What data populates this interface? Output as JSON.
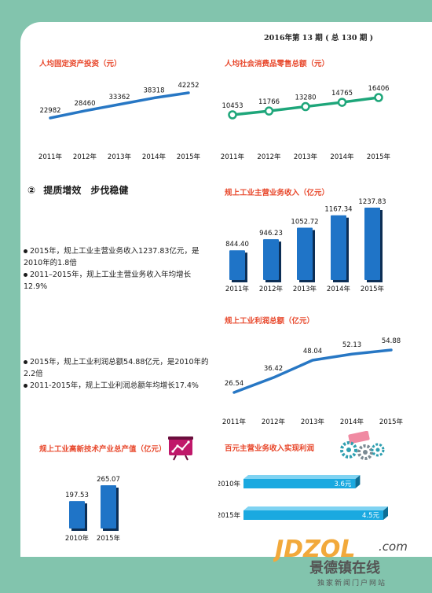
{
  "issue": "2016年第 13 期 ( 总 130 期 )",
  "section": {
    "number": "②",
    "title": "提质增效　步伐稳健"
  },
  "bullets_revenue": [
    "2015年，规上工业主营业务收入1237.83亿元，是2010年的1.8倍",
    "2011–2015年，规上工业主营业务收入年均增长12.9%"
  ],
  "bullets_profit": [
    "2015年，规上工业利润总额54.88亿元，是2010年的2.2倍",
    "2011-2015年，规上工业利润总额年均增长17.4%"
  ],
  "chart_data": [
    {
      "id": "fixed_investment",
      "type": "line",
      "title": "人均固定资产投资（元）",
      "categories": [
        "2011年",
        "2012年",
        "2013年",
        "2014年",
        "2015年"
      ],
      "labels": [
        "22982",
        "28460",
        "33362",
        "38318",
        "42252"
      ],
      "values": [
        22982,
        28460,
        33362,
        38318,
        42252
      ],
      "color": "#2777c4"
    },
    {
      "id": "retail_sales",
      "type": "line",
      "title": "人均社会消费品零售总额（元）",
      "categories": [
        "2011年",
        "2012年",
        "2013年",
        "2014年",
        "2015年"
      ],
      "labels": [
        "10453",
        "11766",
        "13280",
        "14765",
        "16406"
      ],
      "values": [
        10453,
        11766,
        13280,
        14765,
        16406
      ],
      "color": "#1ea67a",
      "markers": true
    },
    {
      "id": "industrial_revenue",
      "type": "bar",
      "title": "规上工业主营业务收入（亿元）",
      "categories": [
        "2011年",
        "2012年",
        "2013年",
        "2014年",
        "2015年"
      ],
      "labels": [
        "844.40",
        "946.23",
        "1052.72",
        "1167.34",
        "1237.83"
      ],
      "values": [
        844.4,
        946.23,
        1052.72,
        1167.34,
        1237.83
      ],
      "color": "#1f74c7"
    },
    {
      "id": "industrial_profit",
      "type": "line",
      "title": "规上工业利润总额（亿元）",
      "categories": [
        "2011年",
        "2012年",
        "2013年",
        "2014年",
        "2015年"
      ],
      "labels": [
        "26.54",
        "36.42",
        "48.04",
        "52.13",
        "54.88"
      ],
      "values": [
        26.54,
        36.42,
        48.04,
        52.13,
        54.88
      ],
      "color": "#2777c4"
    },
    {
      "id": "hightech_output",
      "type": "bar",
      "title": "规上工业高新技术产业总产值（亿元）",
      "categories": [
        "2010年",
        "2015年"
      ],
      "labels": [
        "197.53",
        "265.07"
      ],
      "values": [
        197.53,
        265.07
      ],
      "color": "#1f74c7"
    },
    {
      "id": "profit_per_100",
      "type": "hbar",
      "title": "百元主营业务收入实现利润",
      "categories": [
        "2010年",
        "2015年"
      ],
      "labels": [
        "3.6元",
        "4.5元"
      ],
      "values": [
        3.6,
        4.5
      ],
      "color": "#1aa9e0"
    }
  ],
  "watermark": {
    "logo": "JDZOL",
    "domain": ".com",
    "name": "景德镇在线",
    "tagline": "独家新闻门户网站"
  }
}
